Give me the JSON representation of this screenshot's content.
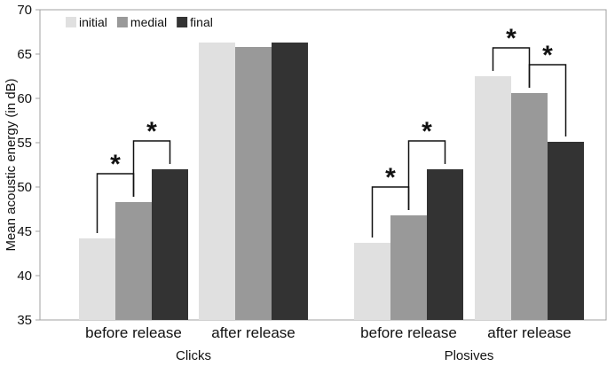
{
  "chart_data": {
    "type": "bar",
    "ylabel": "Mean acoustic energy (in dB)",
    "ylim": [
      35,
      70
    ],
    "yticks": [
      35,
      40,
      45,
      50,
      55,
      60,
      65,
      70
    ],
    "grid": false,
    "legend_position": "top-left",
    "series": [
      {
        "name": "initial",
        "color": "#e0e0e0"
      },
      {
        "name": "medial",
        "color": "#999999"
      },
      {
        "name": "final",
        "color": "#333333"
      }
    ],
    "groups": [
      {
        "label": "Clicks",
        "categories": [
          {
            "label": "before release",
            "values": [
              44.2,
              48.3,
              52.0
            ]
          },
          {
            "label": "after release",
            "values": [
              66.3,
              65.8,
              66.3
            ]
          }
        ]
      },
      {
        "label": "Plosives",
        "categories": [
          {
            "label": "before release",
            "values": [
              43.7,
              46.8,
              52.0
            ]
          },
          {
            "label": "after release",
            "values": [
              62.5,
              60.6,
              55.1
            ]
          }
        ]
      }
    ],
    "significance": [
      {
        "group": 0,
        "category": 0,
        "pair": [
          0,
          1
        ],
        "mark": "*"
      },
      {
        "group": 0,
        "category": 0,
        "pair": [
          1,
          2
        ],
        "mark": "*"
      },
      {
        "group": 1,
        "category": 0,
        "pair": [
          0,
          1
        ],
        "mark": "*"
      },
      {
        "group": 1,
        "category": 0,
        "pair": [
          1,
          2
        ],
        "mark": "*"
      },
      {
        "group": 1,
        "category": 1,
        "pair": [
          0,
          1
        ],
        "mark": "*"
      },
      {
        "group": 1,
        "category": 1,
        "pair": [
          1,
          2
        ],
        "mark": "*"
      }
    ]
  }
}
